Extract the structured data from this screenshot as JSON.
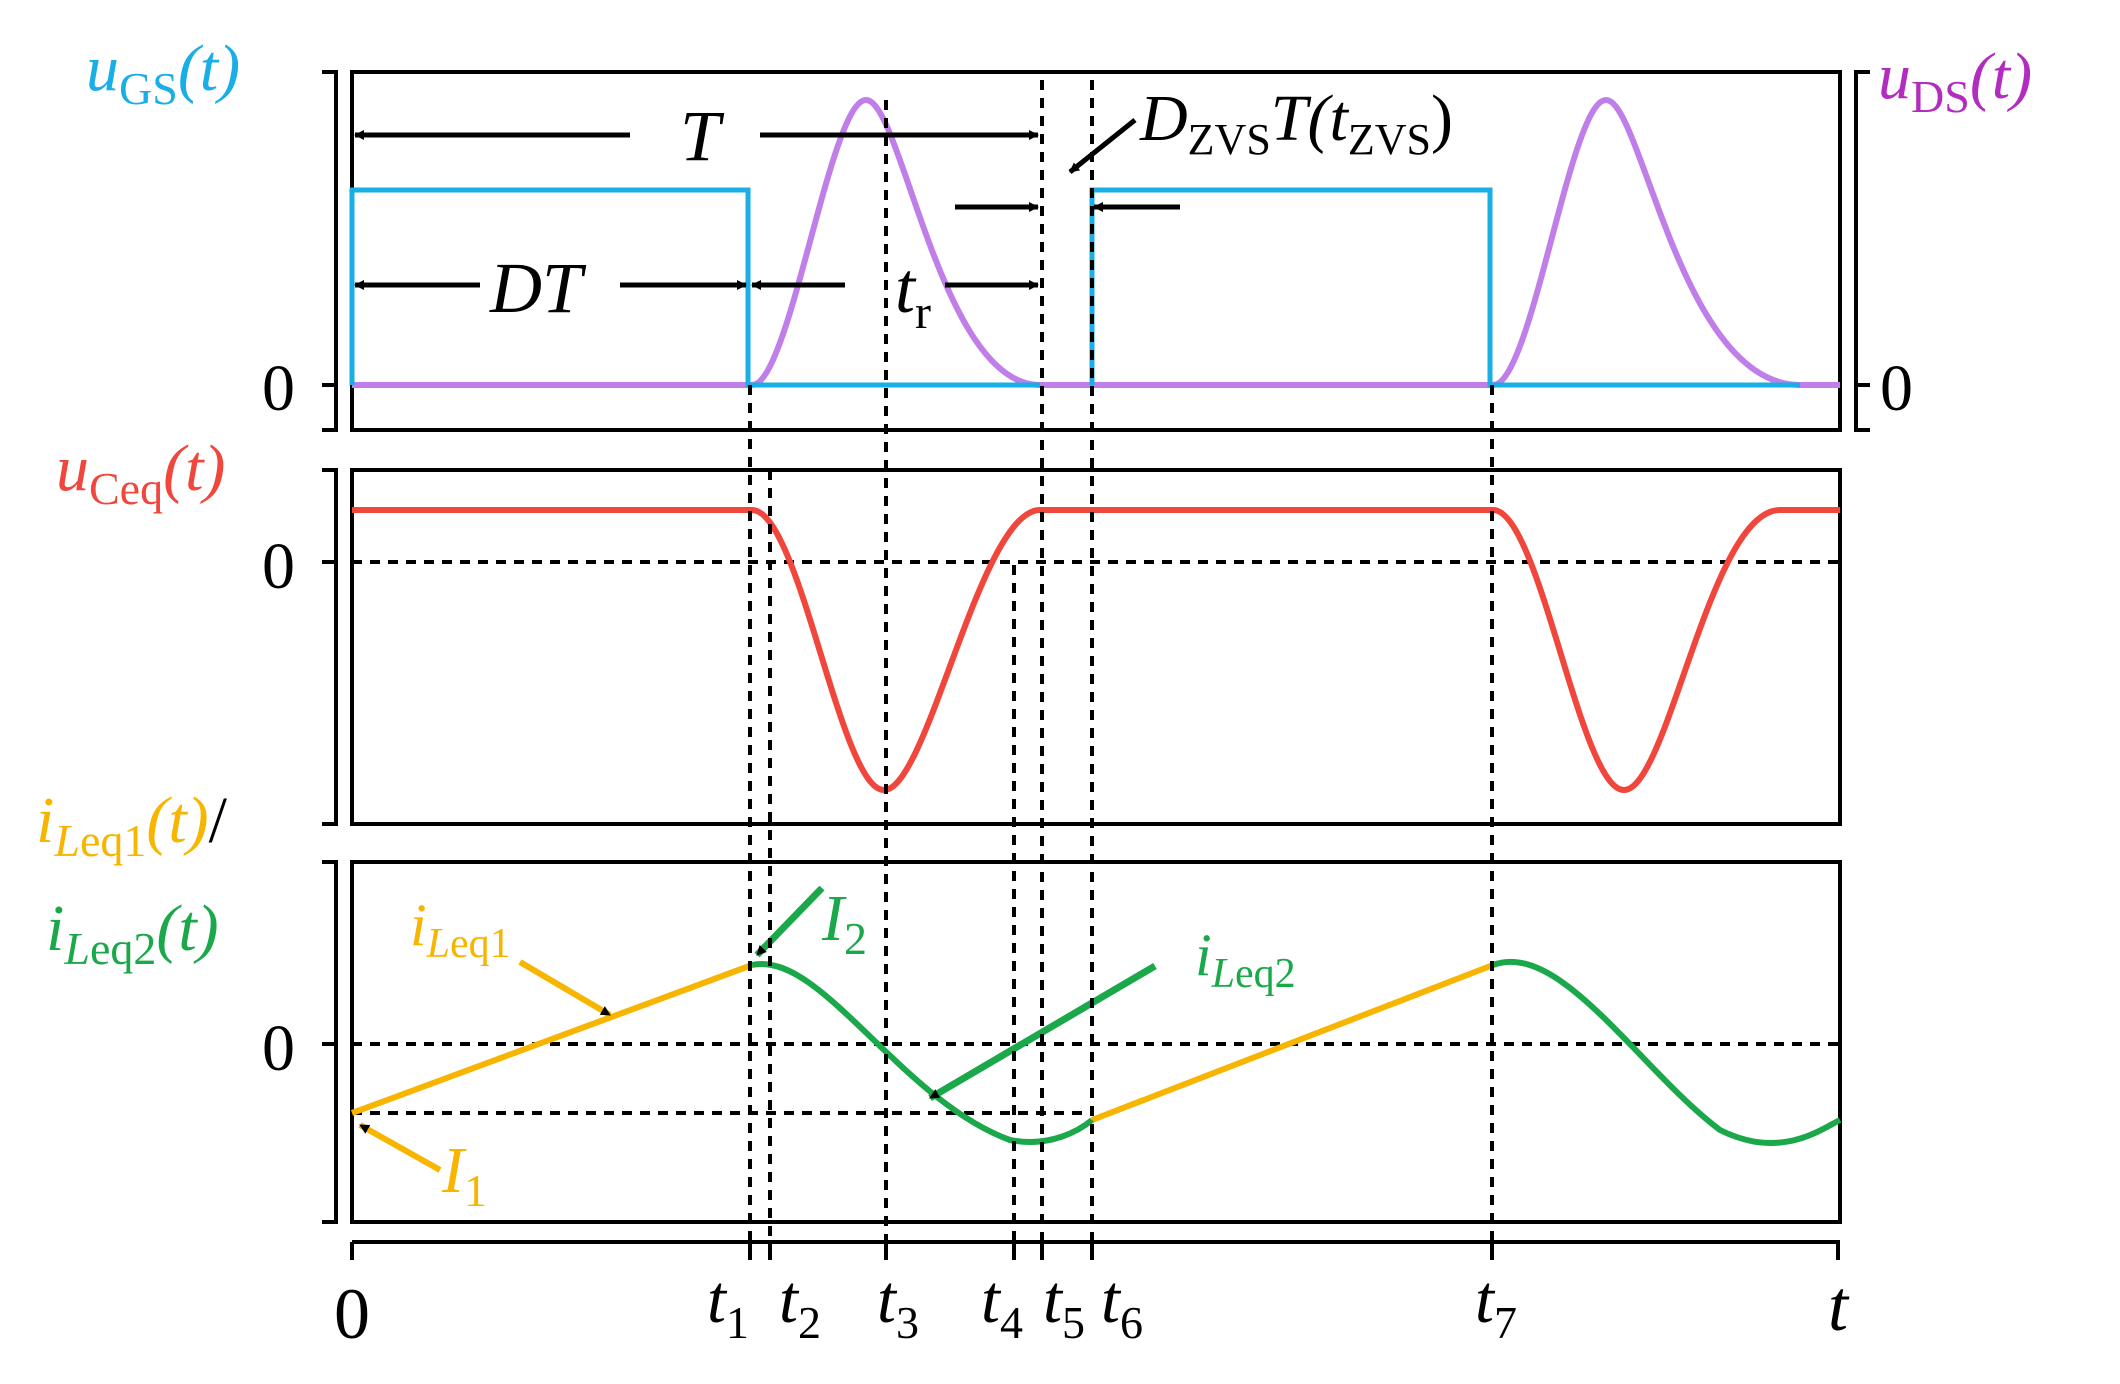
{
  "colors": {
    "ugs": "#1aaee6",
    "uds": "#c07fe8",
    "uds_label": "#b22dbf",
    "uceq": "#f0463c",
    "ileq1": "#f7b500",
    "ileq2": "#1aa84a",
    "axis": "#000000"
  },
  "panel1": {
    "left_label": {
      "main": "u",
      "sub": "GS",
      "arg": "(t)"
    },
    "right_label": {
      "main": "u",
      "sub": "DS",
      "arg": "(t)"
    },
    "zero_left": "0",
    "zero_right": "0",
    "period_label": "T",
    "duty_label": {
      "a": "D",
      "b": "T"
    },
    "rise_label": {
      "main": "t",
      "sub": "r"
    },
    "zvs_label": {
      "a": "D",
      "a_sub": "ZVS",
      "b": "T(",
      "c": "t",
      "c_sub": "ZVS",
      "d": ")"
    }
  },
  "panel2": {
    "left_label": {
      "main": "u",
      "sub": "Ceq",
      "arg": "(t)"
    },
    "zero": "0"
  },
  "panel3": {
    "left_label_1": {
      "main": "i",
      "sub_it": "L",
      "sub": "eq1",
      "arg": "(t)",
      "slash": "/"
    },
    "left_label_2": {
      "main": "i",
      "sub_it": "L",
      "sub": "eq2",
      "arg": "(t)"
    },
    "zero": "0",
    "trace1_label": {
      "main": "i",
      "sub_it": "L",
      "sub": "eq1"
    },
    "trace2_label": {
      "main": "i",
      "sub_it": "L",
      "sub": "eq2"
    },
    "I1": {
      "main": "I",
      "sub": "1"
    },
    "I2": {
      "main": "I",
      "sub": "2"
    }
  },
  "time_axis": {
    "origin": "0",
    "end": "t",
    "ticks": [
      {
        "main": "t",
        "sub": "1"
      },
      {
        "main": "t",
        "sub": "2"
      },
      {
        "main": "t",
        "sub": "3"
      },
      {
        "main": "t",
        "sub": "4"
      },
      {
        "main": "t",
        "sub": "5"
      },
      {
        "main": "t",
        "sub": "6"
      },
      {
        "main": "t",
        "sub": "7"
      }
    ]
  }
}
